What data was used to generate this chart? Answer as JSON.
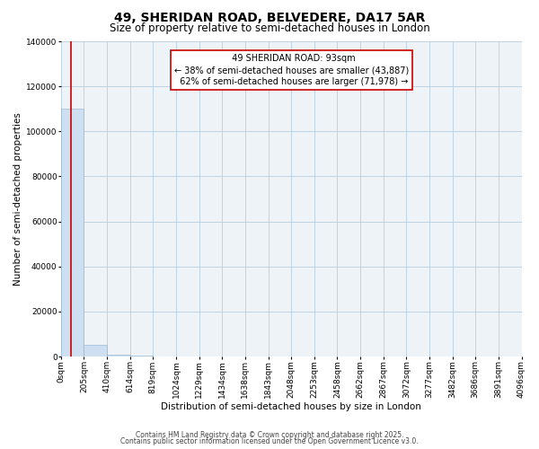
{
  "title": "49, SHERIDAN ROAD, BELVEDERE, DA17 5AR",
  "subtitle": "Size of property relative to semi-detached houses in London",
  "xlabel": "Distribution of semi-detached houses by size in London",
  "ylabel": "Number of semi-detached properties",
  "footnote1": "Contains HM Land Registry data © Crown copyright and database right 2025.",
  "footnote2": "Contains public sector information licensed under the Open Government Licence v3.0.",
  "annotation_title": "49 SHERIDAN ROAD: 93sqm",
  "annotation_line1": "← 38% of semi-detached houses are smaller (43,887)",
  "annotation_line2": "62% of semi-detached houses are larger (71,978) →",
  "property_size": 93,
  "bin_width": 205,
  "bar_values": [
    110000,
    5200,
    750,
    300,
    200,
    120,
    90,
    65,
    50,
    38,
    30,
    22,
    18,
    14,
    11,
    9,
    7,
    5,
    4,
    3
  ],
  "ylim": [
    0,
    140000
  ],
  "yticks": [
    0,
    20000,
    40000,
    60000,
    80000,
    100000,
    120000,
    140000
  ],
  "x_tick_labels": [
    "0sqm",
    "205sqm",
    "410sqm",
    "614sqm",
    "819sqm",
    "1024sqm",
    "1229sqm",
    "1434sqm",
    "1638sqm",
    "1843sqm",
    "2048sqm",
    "2253sqm",
    "2458sqm",
    "2662sqm",
    "2867sqm",
    "3072sqm",
    "3277sqm",
    "3482sqm",
    "3686sqm",
    "3891sqm",
    "4096sqm"
  ],
  "bar_color": "#cddff0",
  "bar_edge_color": "#8ab0cc",
  "red_line_color": "#cc0000",
  "bg_color": "#ffffff",
  "plot_bg_color": "#eef3f8",
  "grid_color": "#b8cfe0",
  "annotation_box_color": "#ffffff",
  "annotation_box_edge": "#cc0000",
  "title_fontsize": 10,
  "subtitle_fontsize": 8.5,
  "axis_label_fontsize": 7.5,
  "tick_fontsize": 6.5,
  "annotation_fontsize": 7,
  "footnote_fontsize": 5.5
}
